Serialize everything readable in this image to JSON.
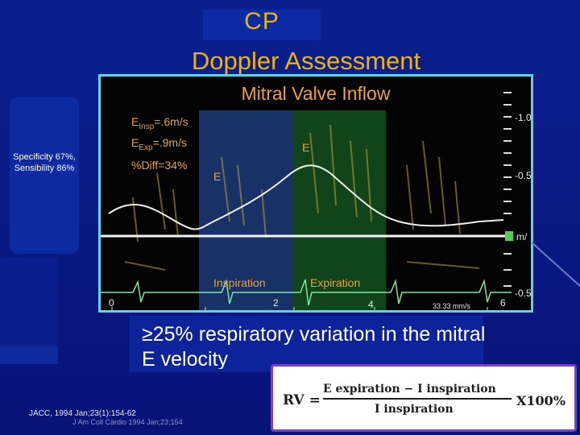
{
  "slide": {
    "title": "CP",
    "subtitle": "Doppler Assessment",
    "side_note": "Specificity 67%, Sensibility 86%",
    "bullet": "≥25% respiratory variation in the mitral E velocity",
    "citation": "JACC, 1994 Jan;23(1):154-62",
    "citation_secondary": "J Am Coll Cardio 1994 Jan;23;154"
  },
  "doppler_image": {
    "title": "Mitral Valve Inflow",
    "e_insp_label": "E",
    "e_insp_sub": "Insp",
    "e_insp_value": "=.6m/s",
    "e_exp_label": "E",
    "e_exp_sub": "Exp",
    "e_exp_value": "=.9m/s",
    "pct_diff": "%Diff=34%",
    "e_marker_left": "E",
    "e_marker_right": "E",
    "phase_insp": "Inspiration",
    "phase_exp": "Expiration",
    "scale_labels": [
      "-1.0",
      "-0.5",
      "m/",
      "-0.5"
    ],
    "time_labels": [
      "0",
      "2",
      "4",
      "6"
    ],
    "sweep": "33.33 mm/s",
    "colors": {
      "insp_band": "#2a57b8",
      "exp_band": "#1f7a2c",
      "frame": "#5fd3e6",
      "label": "#e9a23a"
    }
  },
  "formula": {
    "lhs": "RV =",
    "numerator": "E expiration  − I inspiration",
    "denominator": "I inspiration",
    "multiplier": "X100%"
  }
}
